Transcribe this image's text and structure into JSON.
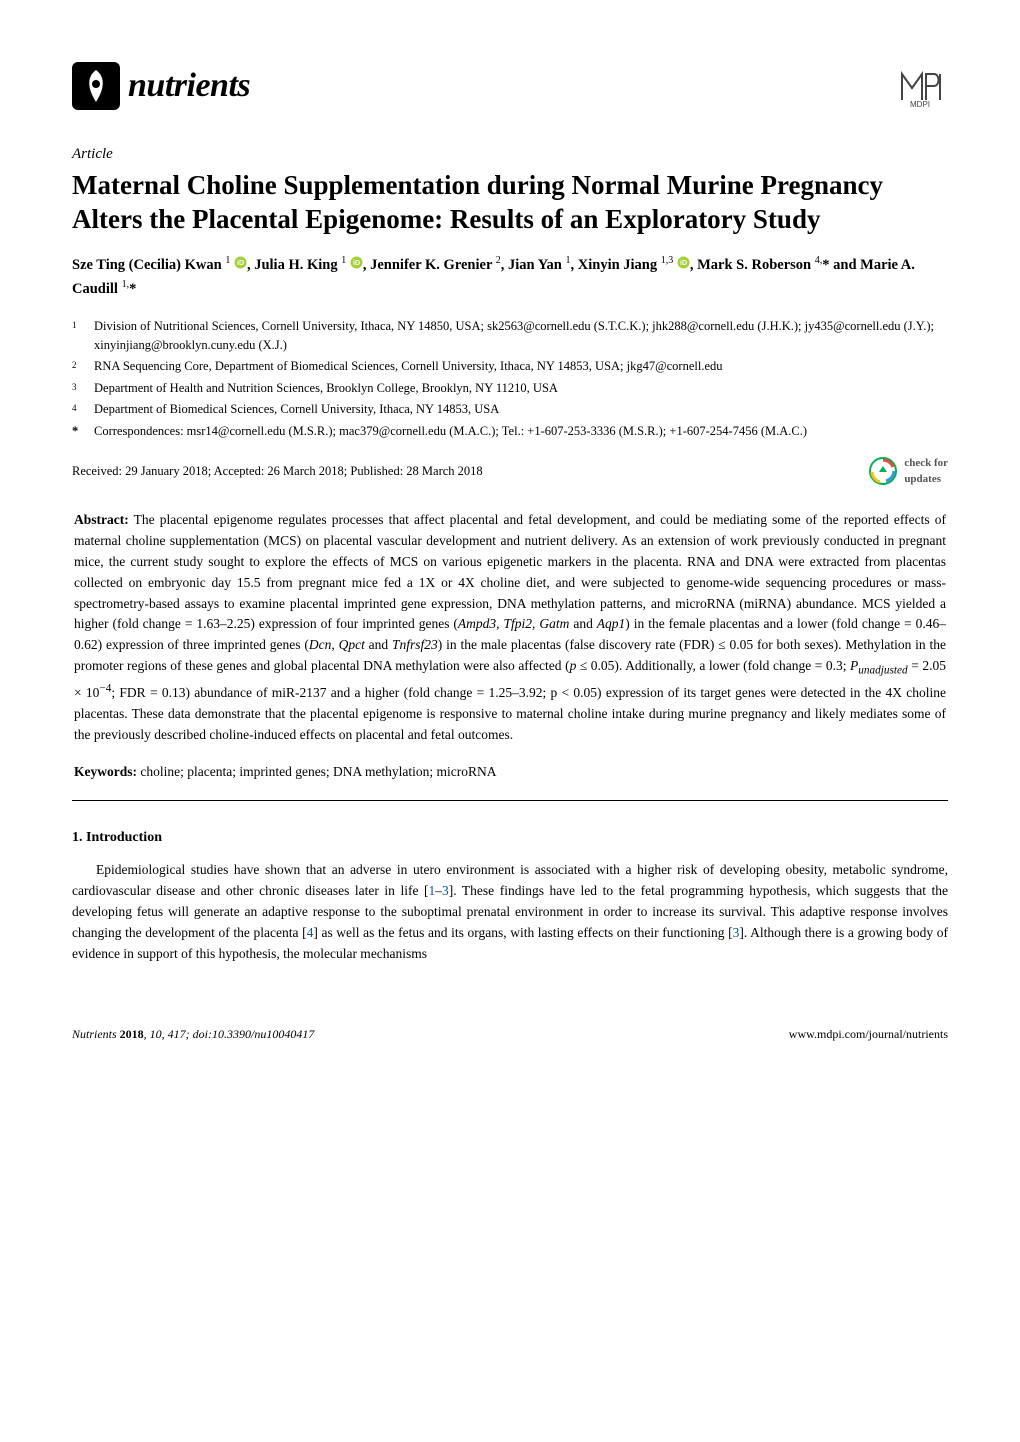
{
  "journal": {
    "name": "nutrients"
  },
  "article_label": "Article",
  "title": "Maternal Choline Supplementation during Normal Murine Pregnancy Alters the Placental Epigenome: Results of an Exploratory Study",
  "authors_html": "Sze Ting (Cecilia) Kwan <sup>1</sup> <svg class='orcid' data-name='orcid-icon' data-interactable='false' viewBox='0 0 24 24'><circle cx='12' cy='12' r='11' fill='#A6CE39'/><text x='12' y='17' text-anchor='middle' font-size='13' fill='#fff' font-family='Arial' font-weight='bold'>iD</text></svg>, Julia H. King <sup>1</sup> <svg class='orcid' data-name='orcid-icon' data-interactable='false' viewBox='0 0 24 24'><circle cx='12' cy='12' r='11' fill='#A6CE39'/><text x='12' y='17' text-anchor='middle' font-size='13' fill='#fff' font-family='Arial' font-weight='bold'>iD</text></svg>, Jennifer K. Grenier <sup>2</sup>, Jian Yan <sup>1</sup>, Xinyin Jiang <sup>1,3</sup> <svg class='orcid' data-name='orcid-icon' data-interactable='false' viewBox='0 0 24 24'><circle cx='12' cy='12' r='11' fill='#A6CE39'/><text x='12' y='17' text-anchor='middle' font-size='13' fill='#fff' font-family='Arial' font-weight='bold'>iD</text></svg>, Mark S. Roberson <sup>4,</sup>* and Marie A. Caudill <sup>1,</sup>*",
  "affiliations": [
    {
      "num": "1",
      "text": "Division of Nutritional Sciences, Cornell University, Ithaca, NY 14850, USA; sk2563@cornell.edu (S.T.C.K.); jhk288@cornell.edu (J.H.K.); jy435@cornell.edu (J.Y.); xinyinjiang@brooklyn.cuny.edu (X.J.)"
    },
    {
      "num": "2",
      "text": "RNA Sequencing Core, Department of Biomedical Sciences, Cornell University, Ithaca, NY 14853, USA; jkg47@cornell.edu"
    },
    {
      "num": "3",
      "text": "Department of Health and Nutrition Sciences, Brooklyn College, Brooklyn, NY 11210, USA"
    },
    {
      "num": "4",
      "text": "Department of Biomedical Sciences, Cornell University, Ithaca, NY 14853, USA"
    }
  ],
  "correspondence": {
    "star": "*",
    "text": "Correspondences: msr14@cornell.edu (M.S.R.); mac379@cornell.edu (M.A.C.); Tel.: +1-607-253-3336 (M.S.R.); +1-607-254-7456 (M.A.C.)"
  },
  "received": "Received: 29 January 2018; Accepted: 26 March 2018; Published: 28 March 2018",
  "updates_label_1": "check for",
  "updates_label_2": "updates",
  "abstract": {
    "label": "Abstract:",
    "text": " The placental epigenome regulates processes that affect placental and fetal development, and could be mediating some of the reported effects of maternal choline supplementation (MCS) on placental vascular development and nutrient delivery. As an extension of work previously conducted in pregnant mice, the current study sought to explore the effects of MCS on various epigenetic markers in the placenta. RNA and DNA were extracted from placentas collected on embryonic day 15.5 from pregnant mice fed a 1X or 4X choline diet, and were subjected to genome-wide sequencing procedures or mass-spectrometry-based assays to examine placental imprinted gene expression, DNA methylation patterns, and microRNA (miRNA) abundance. MCS yielded a higher (fold change = 1.63–2.25) expression of four imprinted genes (Ampd3, Tfpi2, Gatm and Aqp1) in the female placentas and a lower (fold change = 0.46–0.62) expression of three imprinted genes (Dcn, Qpct and Tnfrsf23) in the male placentas (false discovery rate (FDR) ≤ 0.05 for both sexes). Methylation in the promoter regions of these genes and global placental DNA methylation were also affected (p ≤ 0.05). Additionally, a lower (fold change = 0.3; Punadjusted = 2.05 × 10−4; FDR = 0.13) abundance of miR-2137 and a higher (fold change = 1.25–3.92; p < 0.05) expression of its target genes were detected in the 4X choline placentas. These data demonstrate that the placental epigenome is responsive to maternal choline intake during murine pregnancy and likely mediates some of the previously described choline-induced effects on placental and fetal outcomes."
  },
  "keywords": {
    "label": "Keywords:",
    "text": " choline; placenta; imprinted genes; DNA methylation; microRNA"
  },
  "section_heading": "1. Introduction",
  "body": {
    "pre": "Epidemiological studies have shown that an adverse in utero environment is associated with a higher risk of developing obesity, metabolic syndrome, cardiovascular disease and other chronic diseases later in life [",
    "r1": "1",
    "dash": "–",
    "r3a": "3",
    "mid1": "]. These findings have led to the fetal programming hypothesis, which suggests that the developing fetus will generate an adaptive response to the suboptimal prenatal environment in order to increase its survival. This adaptive response involves changing the development of the placenta [",
    "r4": "4",
    "mid2": "] as well as the fetus and its organs, with lasting effects on their functioning [",
    "r3b": "3",
    "post": "]. Although there is a growing body of evidence in support of this hypothesis, the molecular mechanisms"
  },
  "footer": {
    "left_italic": "Nutrients ",
    "left_bold": "2018",
    "left_rest": ", 10, 417; doi:10.3390/nu10040417",
    "right": "www.mdpi.com/journal/nutrients"
  },
  "colors": {
    "orcid_green": "#A6CE39",
    "ref_blue": "#0b5394",
    "updates_badge_green": "#06b050",
    "updates_badge_text": "#555555",
    "mdpi_outline": "#444444"
  }
}
